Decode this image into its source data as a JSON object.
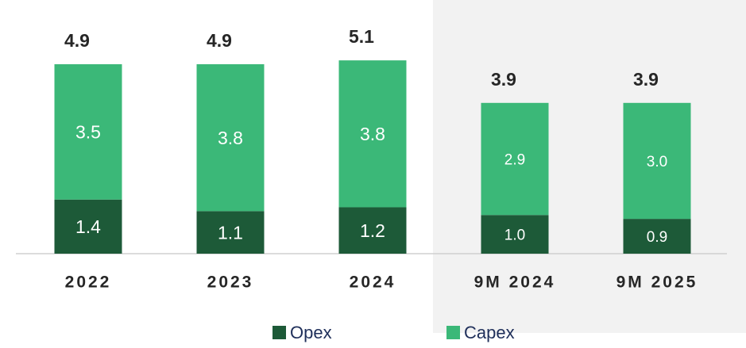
{
  "chart_data": {
    "type": "stacked_bar",
    "categories": [
      "2022",
      "2023",
      "2024",
      "9M 2024",
      "9M 2025"
    ],
    "series": [
      {
        "name": "Opex",
        "color": "#1d5a38",
        "values": [
          1.4,
          1.1,
          1.2,
          1.0,
          0.9
        ],
        "value_labels": [
          "1.4",
          "1.1",
          "1.2",
          "1.0",
          "0.9"
        ]
      },
      {
        "name": "Capex",
        "color": "#3bb878",
        "values": [
          3.5,
          3.8,
          3.8,
          2.9,
          3.0
        ],
        "value_labels": [
          "3.5",
          "3.8",
          "3.8",
          "2.9",
          "3.0"
        ]
      }
    ],
    "totals": [
      4.9,
      4.9,
      5.1,
      3.9,
      3.9
    ],
    "ylim": [
      0,
      6.5
    ],
    "legend": "bottom"
  }
}
